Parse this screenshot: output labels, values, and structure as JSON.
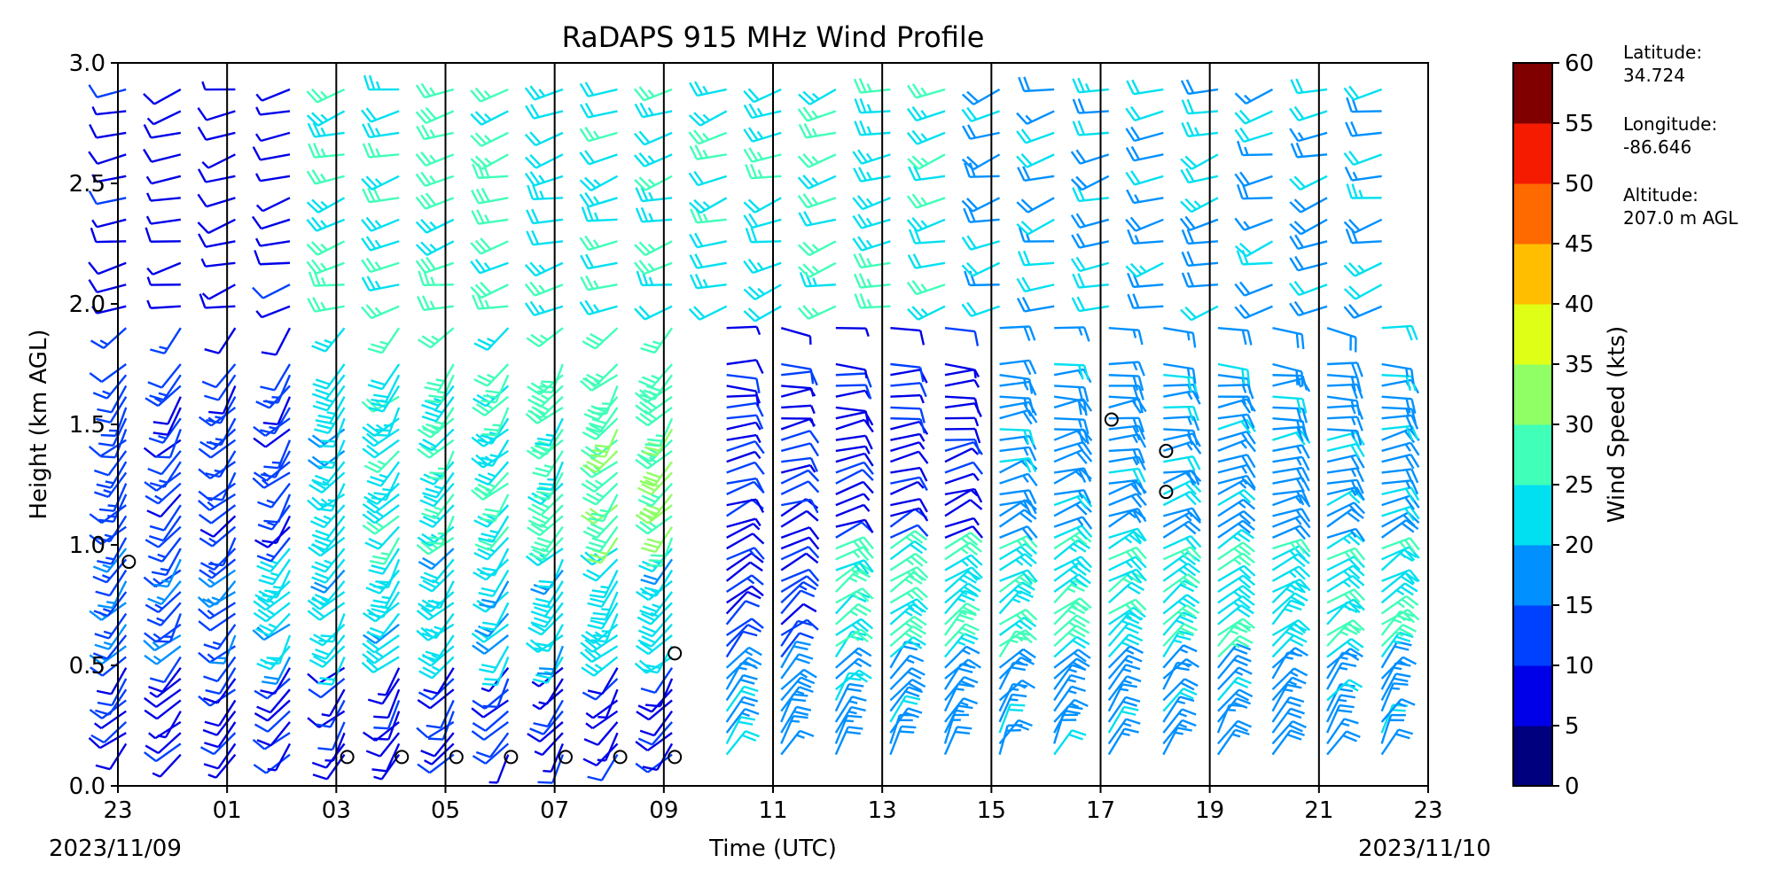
{
  "chart_data": {
    "type": "wind-barb-profile",
    "title": "RaDAPS 915 MHz Wind Profile",
    "xlabel": "Time (UTC)",
    "ylabel": "Height (km AGL)",
    "x_ticks": [
      "23",
      "01",
      "03",
      "05",
      "07",
      "09",
      "11",
      "13",
      "15",
      "17",
      "19",
      "21",
      "23"
    ],
    "start_date": "2023/11/09",
    "end_date": "2023/11/10",
    "ylim": [
      0.0,
      3.0
    ],
    "y_ticks": [
      "0.0",
      "0.5",
      "1.0",
      "1.5",
      "2.0",
      "2.5",
      "3.0"
    ],
    "colorbar": {
      "label": "Wind Speed (kts)",
      "ticks": [
        "0",
        "5",
        "10",
        "15",
        "20",
        "25",
        "30",
        "35",
        "40",
        "45",
        "50",
        "55",
        "60"
      ],
      "colors": [
        "#00007f",
        "#0000e8",
        "#0040ff",
        "#0090ff",
        "#00e0f0",
        "#40ffb8",
        "#90ff66",
        "#e0ff16",
        "#ffbf00",
        "#ff6a00",
        "#f51b00",
        "#800000"
      ]
    },
    "grid": "vertical lines at 2-hour ticks",
    "station": {
      "lat_label": "Latitude:",
      "lat": "34.724",
      "lon_label": "Longitude:",
      "lon": "-86.646",
      "alt_label": "Altitude:",
      "alt": "207.0 m AGL"
    },
    "profiles_note": "hourly profiles from 23 UTC to 22 UTC; wind barbs colored by speed; circles mark calm winds",
    "calm_markers": [
      {
        "hour": 4.2,
        "height": 0.12
      },
      {
        "hour": 5.2,
        "height": 0.12
      },
      {
        "hour": 6.2,
        "height": 0.12
      },
      {
        "hour": 7.2,
        "height": 0.12
      },
      {
        "hour": 8.2,
        "height": 0.12
      },
      {
        "hour": 9.2,
        "height": 0.12
      },
      {
        "hour": 10.2,
        "height": 0.12
      },
      {
        "hour": 0.2,
        "height": 0.93
      },
      {
        "hour": 10.2,
        "height": 0.55
      },
      {
        "hour": 18.2,
        "height": 1.52
      },
      {
        "hour": 19.2,
        "height": 1.39
      },
      {
        "hour": 19.2,
        "height": 1.22
      }
    ]
  }
}
